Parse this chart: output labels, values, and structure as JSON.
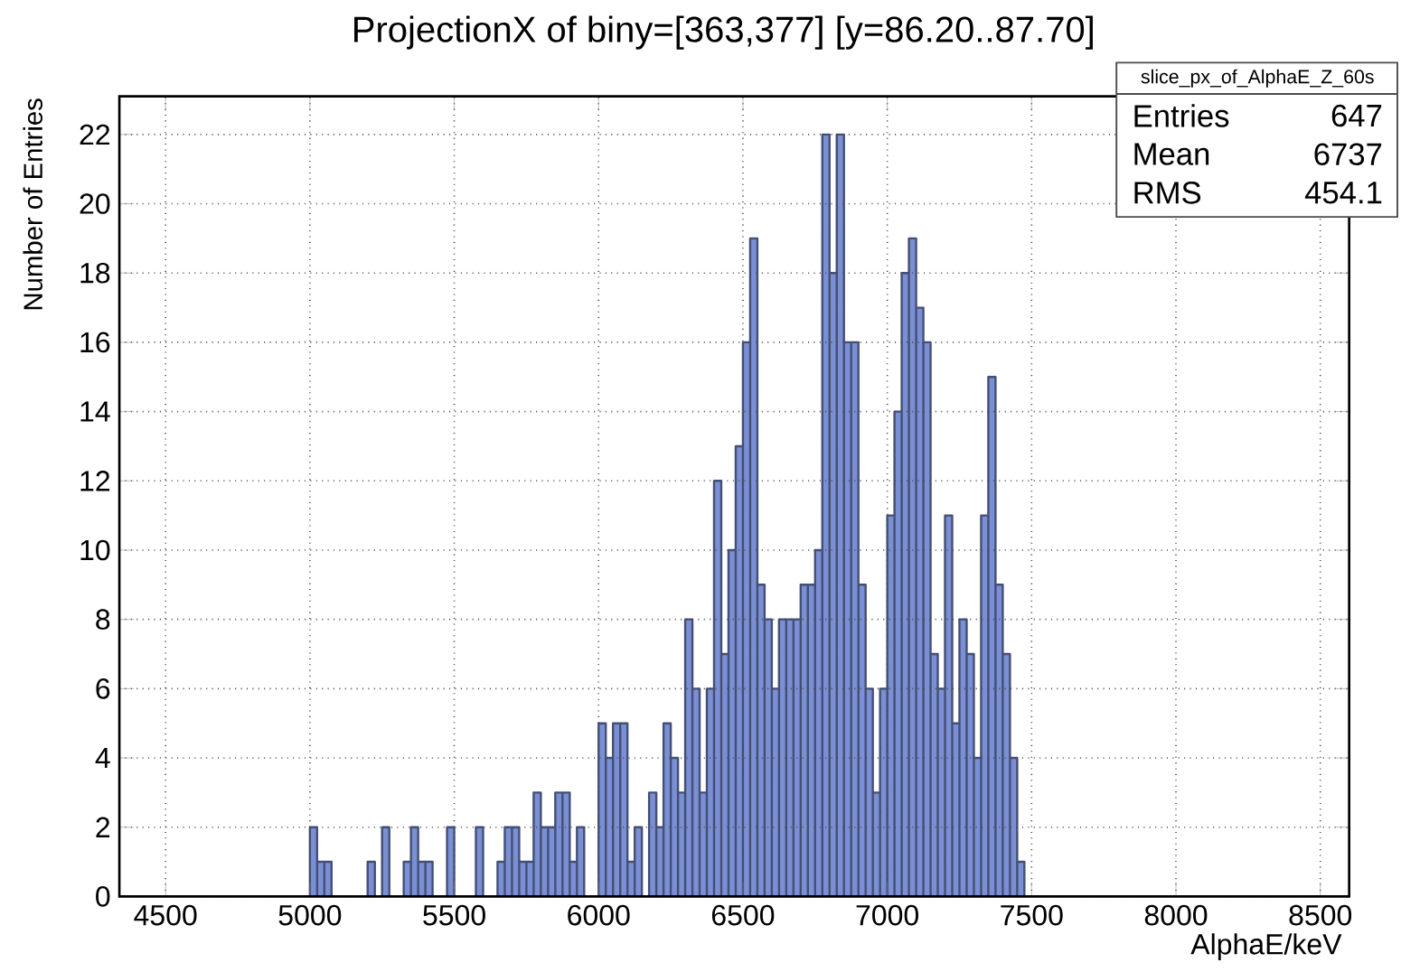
{
  "chart_data": {
    "type": "histogram",
    "title": "ProjectionX of biny=[363,377] [y=86.20..87.70]",
    "xlabel": "AlphaE/keV",
    "ylabel": "Number of Entries",
    "bins": [
      5000,
      5025,
      5050,
      5075,
      5100,
      5125,
      5150,
      5175,
      5200,
      5225,
      5250,
      5275,
      5300,
      5325,
      5350,
      5375,
      5400,
      5425,
      5450,
      5475,
      5500,
      5525,
      5550,
      5575,
      5600,
      5625,
      5650,
      5675,
      5700,
      5725,
      5750,
      5775,
      5800,
      5825,
      5850,
      5875,
      5900,
      5925,
      5950,
      5975,
      6000,
      6025,
      6050,
      6075,
      6100,
      6125,
      6150,
      6175,
      6200,
      6225,
      6250,
      6275,
      6300,
      6325,
      6350,
      6375,
      6400,
      6425,
      6450,
      6475,
      6500,
      6525,
      6550,
      6575,
      6600,
      6625,
      6650,
      6675,
      6700,
      6725,
      6750,
      6775,
      6800,
      6825,
      6850,
      6875,
      6900,
      6925,
      6950,
      6975,
      7000,
      7025,
      7050,
      7075,
      7100,
      7125,
      7150,
      7175,
      7200,
      7225,
      7250,
      7275,
      7300,
      7325,
      7350,
      7375,
      7400,
      7425,
      7450,
      7475,
      7500
    ],
    "values": [
      2,
      1,
      1,
      0,
      0,
      0,
      0,
      0,
      1,
      0,
      2,
      0,
      0,
      1,
      2,
      1,
      1,
      0,
      0,
      2,
      0,
      0,
      0,
      2,
      0,
      0,
      1,
      2,
      2,
      1,
      1,
      3,
      2,
      2,
      3,
      3,
      1,
      2,
      0,
      0,
      5,
      4,
      5,
      5,
      1,
      2,
      0,
      3,
      2,
      5,
      4,
      3,
      8,
      6,
      3,
      6,
      12,
      7,
      10,
      13,
      16,
      19,
      9,
      8,
      6,
      8,
      8,
      8,
      9,
      9,
      10,
      22,
      18,
      22,
      16,
      16,
      9,
      6,
      3,
      6,
      11,
      14,
      18,
      19,
      17,
      16,
      7,
      6,
      11,
      5,
      8,
      7,
      4,
      11,
      15,
      9,
      7,
      4,
      1,
      0
    ],
    "color": "#7b8fd4",
    "xlim": [
      4340,
      8600
    ],
    "ylim": [
      0,
      23.1
    ],
    "xticks": [
      4500,
      5000,
      5500,
      6000,
      6500,
      7000,
      7500,
      8000,
      8500
    ],
    "yticks": [
      0,
      2,
      4,
      6,
      8,
      10,
      12,
      14,
      16,
      18,
      20,
      22
    ],
    "grid": true,
    "annotations": [
      "slice_px_of_AlphaE_Z_60s",
      "Entries",
      "647",
      "Mean",
      "6737",
      "RMS",
      "454.1"
    ]
  }
}
